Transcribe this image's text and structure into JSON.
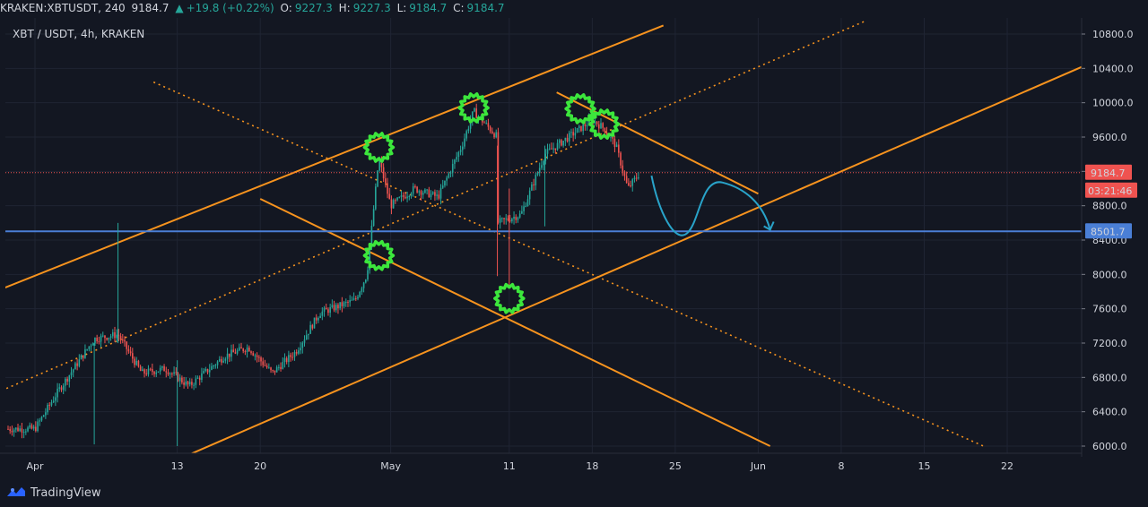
{
  "header": {
    "symbol": "KRAKEN:XBTUSDT, 240",
    "last": "9184.7",
    "change_arrow": "▲",
    "change": "+19.8 (+0.22%)",
    "o_label": "O:",
    "o_value": "9227.3",
    "h_label": "H:",
    "h_value": "9227.3",
    "l_label": "L:",
    "l_value": "9184.7",
    "c_label": "C:",
    "c_value": "9184.7"
  },
  "pair_label": "XBT / USDT, 4h, KRAKEN",
  "footer": {
    "brand": "TradingView",
    "logo_icon": "tradingview-logo-icon"
  },
  "colors": {
    "background": "#131722",
    "up": "#26a69a",
    "down": "#ef5350",
    "channel": "#f7931e",
    "support": "#4a7fd6",
    "marker": "#3ce63c",
    "projection": "#29a3c9",
    "last_price_line": "#ef5350"
  },
  "chart_data": {
    "type": "candlestick",
    "title": "XBT / USDT, 4h, KRAKEN",
    "ylim": [
      6000,
      10800
    ],
    "yticks": [
      "10800.0",
      "10400.0",
      "10000.0",
      "9600.0",
      "9200.0",
      "8800.0",
      "8400.0",
      "8000.0",
      "7600.0",
      "7200.0",
      "6800.0",
      "6400.0",
      "6000.0"
    ],
    "xtick_labels": [
      "Apr",
      "13",
      "20",
      "May",
      "11",
      "18",
      "25",
      "Jun",
      "8",
      "15",
      "22"
    ],
    "last_price": "9184.7",
    "countdown": "03:21:46",
    "horizontal_level": "8501.7",
    "price_path": [
      {
        "t": "2020-04-01",
        "p": 6200
      },
      {
        "t": "2020-04-03",
        "p": 6650
      },
      {
        "t": "2020-04-06",
        "p": 7250
      },
      {
        "t": "2020-04-08",
        "p": 7300
      },
      {
        "t": "2020-04-10",
        "p": 6850
      },
      {
        "t": "2020-04-12",
        "p": 6900
      },
      {
        "t": "2020-04-14",
        "p": 6700
      },
      {
        "t": "2020-04-17",
        "p": 7050
      },
      {
        "t": "2020-04-19",
        "p": 7150
      },
      {
        "t": "2020-04-21",
        "p": 6850
      },
      {
        "t": "2020-04-23",
        "p": 7100
      },
      {
        "t": "2020-04-25",
        "p": 7550
      },
      {
        "t": "2020-04-28",
        "p": 7700
      },
      {
        "t": "2020-04-29",
        "p": 8000
      },
      {
        "t": "2020-04-30",
        "p": 9350
      },
      {
        "t": "2020-05-01",
        "p": 8800
      },
      {
        "t": "2020-05-03",
        "p": 9000
      },
      {
        "t": "2020-05-05",
        "p": 8900
      },
      {
        "t": "2020-05-07",
        "p": 9500
      },
      {
        "t": "2020-05-08",
        "p": 9900
      },
      {
        "t": "2020-05-10",
        "p": 9600
      },
      {
        "t": "2020-05-10",
        "p": 8600
      },
      {
        "t": "2020-05-12",
        "p": 8700
      },
      {
        "t": "2020-05-14",
        "p": 9400
      },
      {
        "t": "2020-05-16",
        "p": 9600
      },
      {
        "t": "2020-05-18",
        "p": 9800
      },
      {
        "t": "2020-05-19",
        "p": 9700
      },
      {
        "t": "2020-05-20",
        "p": 9500
      },
      {
        "t": "2020-05-21",
        "p": 9000
      },
      {
        "t": "2020-05-22",
        "p": 9180
      }
    ],
    "drawings": {
      "channel_lines": [
        {
          "style": "solid",
          "from": {
            "t": "2020-03-25",
            "p": 7600
          },
          "to": {
            "t": "2020-05-24",
            "p": 10900
          }
        },
        {
          "style": "solid",
          "from": {
            "t": "2020-04-13",
            "p": 5840
          },
          "to": {
            "t": "2020-06-29",
            "p": 10460
          }
        },
        {
          "style": "dotted",
          "from": {
            "t": "2020-03-25",
            "p": 6400
          },
          "to": {
            "t": "2020-06-10",
            "p": 10950
          }
        },
        {
          "style": "solid",
          "from": {
            "t": "2020-04-20",
            "p": 8880
          },
          "to": {
            "t": "2020-06-02",
            "p": 6000
          }
        },
        {
          "style": "dotted",
          "from": {
            "t": "2020-04-11",
            "p": 10240
          },
          "to": {
            "t": "2020-06-20",
            "p": 6000
          }
        },
        {
          "style": "solid",
          "from": {
            "t": "2020-05-15",
            "p": 10120
          },
          "to": {
            "t": "2020-06-01",
            "p": 8940
          }
        }
      ],
      "markers": [
        {
          "t": "2020-04-30",
          "p": 9480
        },
        {
          "t": "2020-04-30",
          "p": 8220
        },
        {
          "t": "2020-05-08",
          "p": 9940
        },
        {
          "t": "2020-05-11",
          "p": 7720
        },
        {
          "t": "2020-05-17",
          "p": 9930
        },
        {
          "t": "2020-05-19",
          "p": 9750
        }
      ],
      "projection": [
        {
          "t": "2020-05-23",
          "p": 9150
        },
        {
          "t": "2020-05-26",
          "p": 8480
        },
        {
          "t": "2020-05-29",
          "p": 9070
        },
        {
          "t": "2020-06-02",
          "p": 8520
        }
      ]
    }
  }
}
